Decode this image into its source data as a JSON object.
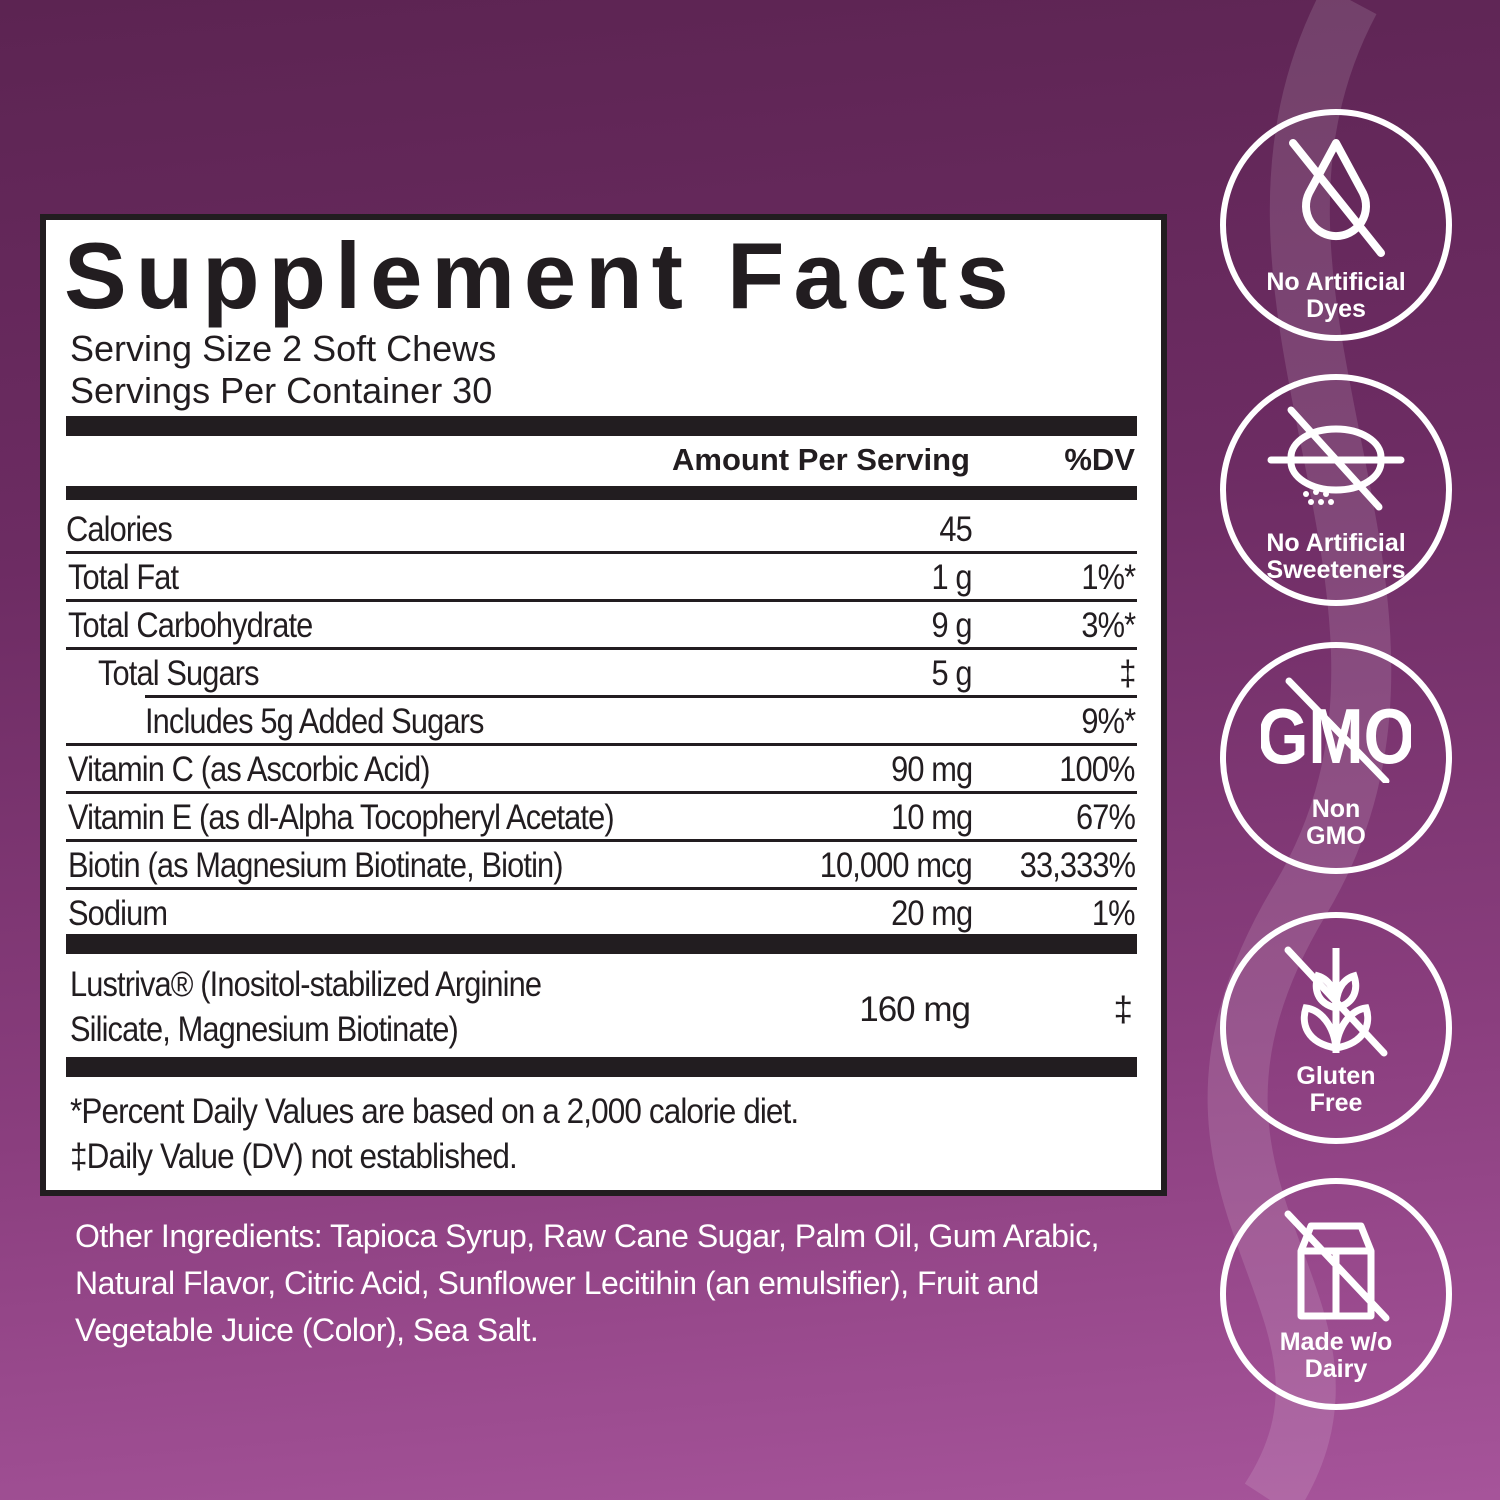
{
  "panel": {
    "title": "Supplement Facts",
    "serving_size": "Serving Size 2 Soft Chews",
    "servings_per_container": "Servings Per Container 30",
    "col_amount": "Amount Per Serving",
    "col_dv": "%DV",
    "rows": [
      {
        "name": "Calories",
        "amount": "45",
        "dv": ""
      },
      {
        "name": "Total Fat",
        "amount": "1 g",
        "dv": "1%*"
      },
      {
        "name": "Total Carbohydrate",
        "amount": "9 g",
        "dv": "3%*"
      },
      {
        "name": "Total Sugars",
        "amount": "5 g",
        "dv": "‡"
      },
      {
        "name": "Includes 5g Added Sugars",
        "amount": "",
        "dv": "9%*"
      },
      {
        "name": "Vitamin C (as Ascorbic Acid)",
        "amount": "90 mg",
        "dv": "100%"
      },
      {
        "name": "Vitamin E (as dl-Alpha Tocopheryl Acetate)",
        "amount": "10 mg",
        "dv": "67%"
      },
      {
        "name": "Biotin (as Magnesium Biotinate, Biotin)",
        "amount": "10,000 mcg",
        "dv": "33,333%"
      },
      {
        "name": "Sodium",
        "amount": "20 mg",
        "dv": "1%"
      }
    ],
    "blend": {
      "line1": "Lustriva® (Inositol-stabilized Arginine",
      "line2": "Silicate, Magnesium Biotinate)",
      "amount": "160 mg",
      "dv": "‡"
    },
    "footnote1": "*Percent Daily Values are based on a 2,000 calorie diet.",
    "footnote2": "‡Daily Value (DV) not established."
  },
  "other_ingredients": "Other Ingredients: Tapioca Syrup, Raw Cane Sugar, Palm Oil, Gum Arabic, Natural Flavor, Citric Acid, Sunflower Lecitihin (an emulsifier), Fruit and Vegetable Juice (Color), Sea Salt.",
  "badges": [
    {
      "icon": "no-drop-icon",
      "line1": "No Artificial",
      "line2": "Dyes"
    },
    {
      "icon": "no-sweetener-icon",
      "line1": "No Artificial",
      "line2": "Sweeteners"
    },
    {
      "icon": "no-gmo-icon",
      "icon_text": "GMO",
      "line1": "Non",
      "line2": "GMO"
    },
    {
      "icon": "no-wheat-icon",
      "line1": "Gluten",
      "line2": "Free"
    },
    {
      "icon": "no-milk-carton-icon",
      "line1": "Made w/o",
      "line2": "Dairy"
    }
  ],
  "colors": {
    "background_top": "#5c2452",
    "background_bottom": "#a6549a",
    "ink": "#221d20"
  }
}
